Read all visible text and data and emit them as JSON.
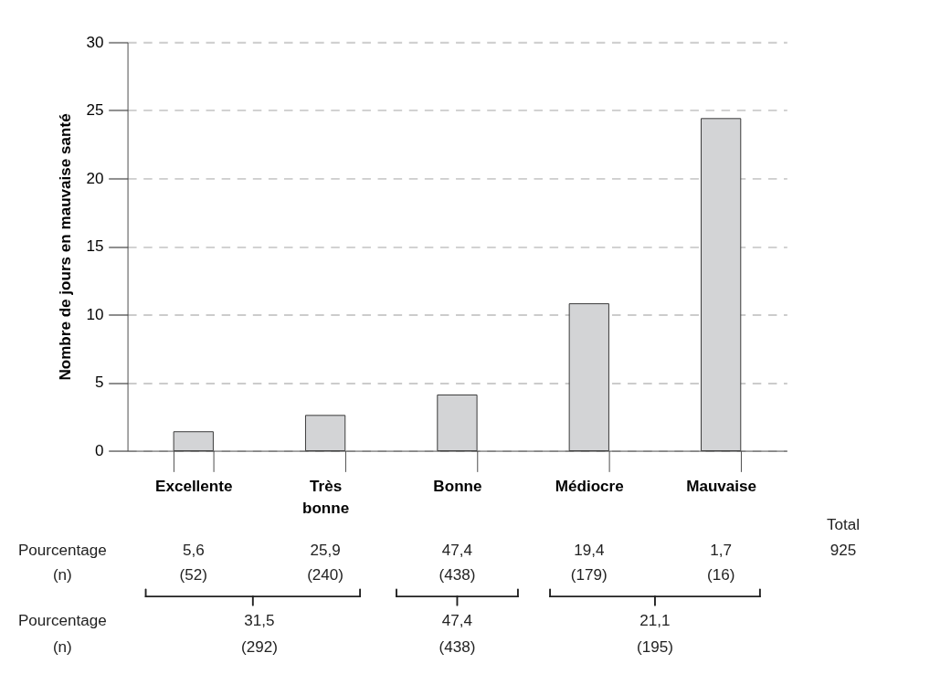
{
  "chart_data": {
    "type": "bar",
    "ylabel": "Nombre de jours en mauvaise santé",
    "categories": [
      "Excellente",
      "Très bonne",
      "Bonne",
      "Médiocre",
      "Mauvaise"
    ],
    "values": [
      1.4,
      2.6,
      4.1,
      10.8,
      24.4
    ],
    "color": "#d3d4d6",
    "ylim": [
      0,
      30
    ],
    "yticks": [
      0,
      5,
      10,
      15,
      20,
      25,
      30
    ],
    "grid": "y",
    "annotations": [
      "Total",
      "925",
      "Pourcentage",
      "(n)",
      "5,6",
      "(52)",
      "25,9",
      "(240)",
      "47,4",
      "(438)",
      "19,4",
      "(179)",
      "1,7",
      "(16)",
      "Pourcentage",
      "(n)",
      "31,5",
      "(292)",
      "47,4",
      "(438)",
      "21,1",
      "(195)"
    ]
  }
}
